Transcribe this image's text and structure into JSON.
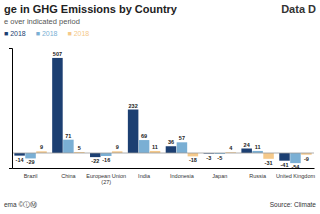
{
  "chart_data": {
    "type": "bar",
    "title": "ge in GHG Emissions by Country",
    "subtitle": "e over indicated period",
    "categories": [
      "Brazil",
      "China",
      "European Union\n(27)",
      "India",
      "Indonesia",
      "Japan",
      "Russia",
      "United Kingdom"
    ],
    "series": [
      {
        "name": "■ 2018",
        "color": "#1c3f72",
        "values": [
          -14,
          507,
          -22,
          232,
          36,
          -3,
          24,
          -41
        ]
      },
      {
        "name": "■ 2018",
        "color": "#7aafd4",
        "values": [
          -29,
          71,
          -16,
          69,
          57,
          -5,
          11,
          -54
        ]
      },
      {
        "name": "■ 2018",
        "color": "#f5c98a",
        "values": [
          9,
          5,
          9,
          11,
          -18,
          4,
          -31,
          -9
        ]
      }
    ],
    "ylim": [
      -80,
      560
    ],
    "grid": false,
    "legend": "upper left",
    "data_labels": true,
    "tick_labels": "x",
    "annotations": [
      "Data D",
      "Source: Climate",
      "ema  ©ⓘⓂ"
    ]
  }
}
